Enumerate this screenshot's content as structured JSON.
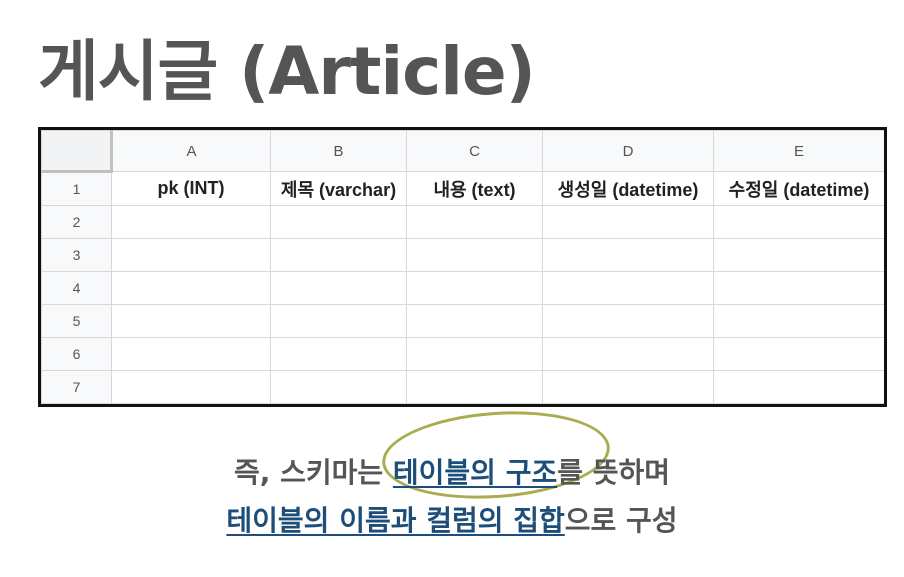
{
  "title": "게시글 (Article)",
  "sheet": {
    "columns": [
      "A",
      "B",
      "C",
      "D",
      "E"
    ],
    "rows": [
      "1",
      "2",
      "3",
      "4",
      "5",
      "6",
      "7"
    ],
    "header_cells": [
      "pk (INT)",
      "제목 (varchar)",
      "내용 (text)",
      "생성일 (datetime)",
      "수정일 (datetime)"
    ]
  },
  "caption": {
    "line1_pre": "즉, 스키마는 ",
    "line1_hl": "테이블의 구조",
    "line1_post": "를 뜻하며",
    "line2_hl": "테이블의 이름과 컬럼의 집합",
    "line2_post": "으로 구성"
  },
  "colors": {
    "highlight": "#1d4e7a",
    "annotation": "#a9ad4f"
  }
}
